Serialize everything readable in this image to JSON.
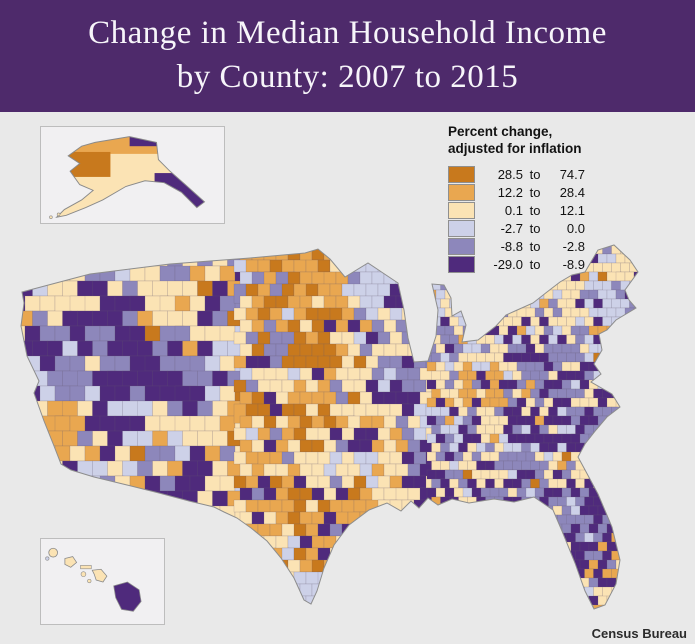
{
  "title": {
    "line1": "Change in Median Household Income",
    "line2": "by County: 2007 to 2015"
  },
  "theme": {
    "banner_background": "#4e2a6b",
    "page_background": "#e9e9e9"
  },
  "legend": {
    "heading_line1": "Percent change,",
    "heading_line2": "adjusted for inflation",
    "separator": "to",
    "classes": [
      {
        "label_from": "28.5",
        "label_to": "74.7",
        "color": "#c8791d"
      },
      {
        "label_from": "12.2",
        "label_to": "28.4",
        "color": "#e9a750"
      },
      {
        "label_from": "0.1",
        "label_to": "12.1",
        "color": "#fbe3b4"
      },
      {
        "label_from": "-2.7",
        "label_to": "0.0",
        "color": "#cdd1e8"
      },
      {
        "label_from": "-8.8",
        "label_to": "-2.8",
        "color": "#8d87bb"
      },
      {
        "label_from": "-29.0",
        "label_to": "-8.9",
        "color": "#4f2a7c"
      }
    ]
  },
  "attribution": "Census Bureau"
}
